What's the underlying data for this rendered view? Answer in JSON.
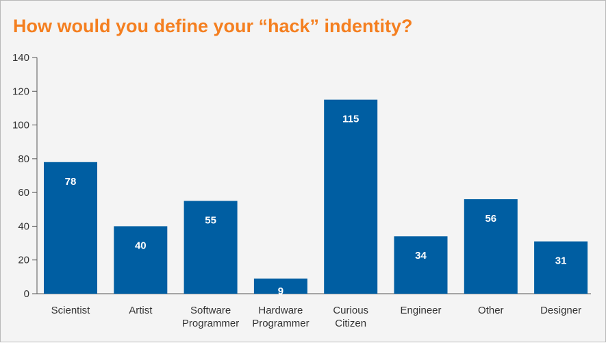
{
  "chart_data": {
    "type": "bar",
    "title": "How would you define your “hack” indentity?",
    "xlabel": "",
    "ylabel": "",
    "ylim": [
      0,
      140
    ],
    "yticks": [
      0,
      20,
      40,
      60,
      80,
      100,
      120,
      140
    ],
    "categories": [
      [
        "Scientist"
      ],
      [
        "Artist"
      ],
      [
        "Software",
        "Programmer"
      ],
      [
        "Hardware",
        "Programmer"
      ],
      [
        "Curious",
        "Citizen"
      ],
      [
        "Engineer"
      ],
      [
        "Other"
      ],
      [
        "Designer"
      ]
    ],
    "values": [
      78,
      40,
      55,
      9,
      115,
      34,
      56,
      31
    ],
    "bar_color": "#005ea2",
    "grid": false,
    "legend": "none"
  },
  "colors": {
    "title": "#f47f20",
    "background": "#f4f4f4",
    "bar": "#005ea2"
  }
}
